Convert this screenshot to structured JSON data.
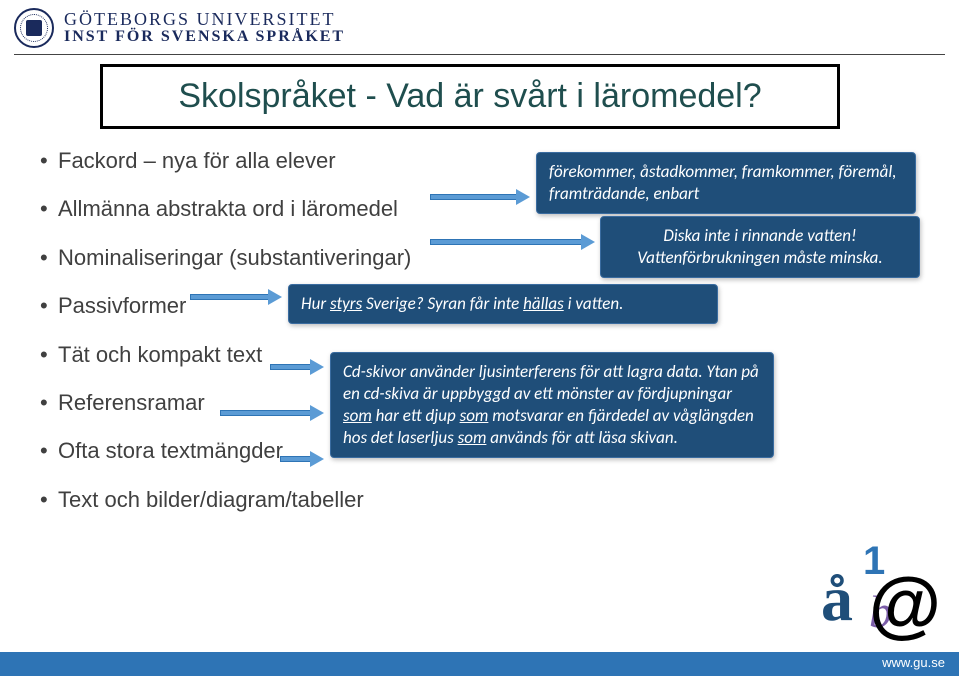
{
  "header": {
    "line1": "GÖTEBORGS UNIVERSITET",
    "line2": "INST FÖR SVENSKA SPRÅKET"
  },
  "title": "Skolspråket - Vad är svårt i läromedel?",
  "bullets": [
    "Fackord – nya för alla elever",
    "Allmänna abstrakta ord i läromedel",
    "Nominaliseringar (substantiveringar)",
    "Passivformer",
    "Tät och kompakt text",
    "Referensramar",
    "Ofta stora textmängder",
    "Text och bilder/diagram/tabeller"
  ],
  "callouts": {
    "c1": "förekommer, åstadkommer, framkommer, föremål, framträdande, enbart",
    "c2_a": "Diska inte i rinnande vatten!",
    "c2_b": "Vattenförbrukningen måste minska.",
    "c3_a": "Hur ",
    "c3_b": "styrs",
    "c3_c": " Sverige? Syran får inte ",
    "c3_d": "hällas",
    "c3_e": " i vatten.",
    "c4_a": "Cd-skivor använder ljusinterferens för att lagra data. Ytan på en cd-skiva är uppbyggd av ett mönster av fördjupningar ",
    "c4_b": "som",
    "c4_c": " har ett djup ",
    "c4_d": "som",
    "c4_e": " motsvarar en fjärdedel av våglängden hos det laserljus ",
    "c4_f": "som",
    "c4_g": " används för att läsa skivan."
  },
  "colors": {
    "callout_bg": "#1f4e79",
    "arrow_fill": "#5b9bd5",
    "footer_bg": "#2e74b5",
    "title_color": "#1f4e4e",
    "body_text": "#404040"
  },
  "footer": {
    "url": "www.gu.se"
  }
}
